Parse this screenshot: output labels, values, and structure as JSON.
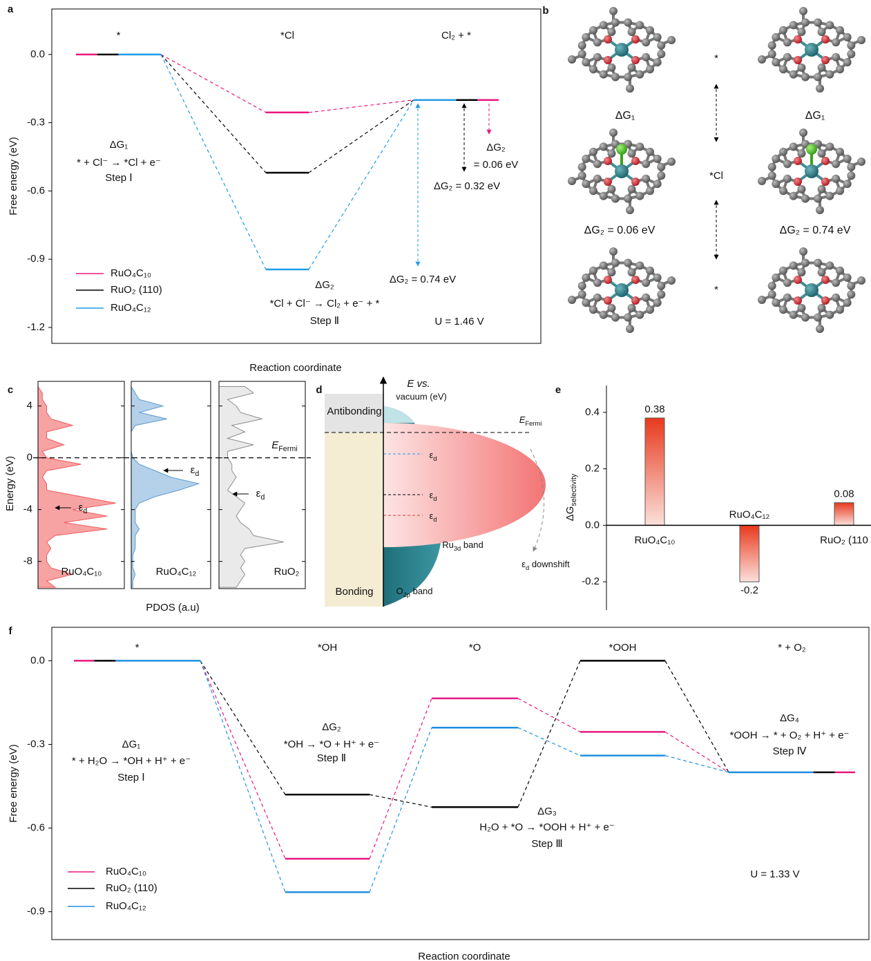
{
  "chart_data": [
    {
      "type": "energy_levels",
      "label": "a",
      "categories": [
        "*",
        "*Cl",
        "Cl₂ + *"
      ],
      "series": [
        {
          "name": "RuO₄C₁₀",
          "color": "#e8177f",
          "values": [
            0,
            -0.255,
            -0.2
          ]
        },
        {
          "name": "RuO₂ (110)",
          "color": "#000000",
          "values": [
            0,
            -0.52,
            -0.2
          ]
        },
        {
          "name": "RuO₄C₁₂",
          "color": "#1f9be8",
          "values": [
            0,
            -0.945,
            -0.2
          ]
        }
      ],
      "ylim": [
        -1.27,
        0.2
      ],
      "yticks": [
        {
          "value": 0,
          "label": "0.0"
        },
        -0.3,
        -0.6,
        -0.9,
        -1.2
      ],
      "xlabel": "Reaction coordinate",
      "ylabel": "Free energy (eV)",
      "legend_colored_text": false,
      "annotations": [
        "ΔG₁",
        "* + Cl⁻ → *Cl + e⁻",
        "Step Ⅰ",
        "ΔG₂",
        "*Cl + Cl⁻ → Cl₂ + e⁻ + *",
        "Step Ⅱ",
        "ΔG₂",
        "= 0.06 eV",
        "ΔG₂ = 0.32 eV",
        "ΔG₂ = 0.74 eV",
        "U = 1.46 V"
      ]
    },
    {
      "type": "pdos",
      "label": "c",
      "y": [
        5.5,
        5,
        4.5,
        4,
        3.5,
        3,
        2.5,
        2,
        1.5,
        1,
        0.5,
        0,
        -0.5,
        -1,
        -1.5,
        -2,
        -2.5,
        -3,
        -3.5,
        -4,
        -4.5,
        -5,
        -5.5,
        -6,
        -6.5,
        -7,
        -7.5,
        -8,
        -8.5,
        -9,
        -9.5,
        -10
      ],
      "xlim": [
        0,
        1
      ],
      "series": [
        {
          "name": "RuO₄C₁₀",
          "color": "#f0585a",
          "values": [
            0,
            0.05,
            0.05,
            0.1,
            0.1,
            0.15,
            0.4,
            0.1,
            0.1,
            0.3,
            0.05,
            0.1,
            0.5,
            0.1,
            0.05,
            0.1,
            0.1,
            0.5,
            0.9,
            0.4,
            0.8,
            0.3,
            0.8,
            0.2,
            0.1,
            0.15,
            0.1,
            0.1,
            0.15,
            0.4,
            0.1,
            0.2
          ]
        },
        {
          "name": "RuO₄C₁₂",
          "color": "#5b9bd0",
          "values": [
            0,
            0.05,
            0.1,
            0.4,
            0.1,
            0.45,
            0.05,
            0,
            0,
            0,
            0,
            0.02,
            0.1,
            0.3,
            0.5,
            0.85,
            0.6,
            0.3,
            0.1,
            0.05,
            0.05,
            0.05,
            0.1,
            0.05,
            0.05,
            0.05,
            0.02,
            0.02,
            0.02,
            0.05,
            0.02,
            0.02
          ]
        },
        {
          "name": "RuO₂",
          "color": "#8c8c8c",
          "values": [
            0.3,
            0.4,
            0.1,
            0.2,
            0.25,
            0.5,
            0.15,
            0.3,
            0.1,
            0.4,
            0.1,
            0.1,
            0.15,
            0.15,
            0.2,
            0.15,
            0.1,
            0.2,
            0.3,
            0.25,
            0.2,
            0.25,
            0.35,
            0.4,
            0.75,
            0.3,
            0.25,
            0.3,
            0.25,
            0.3,
            0.25,
            0.2
          ]
        }
      ],
      "ylim": [
        -10.1,
        5.9
      ],
      "yticks": [
        4,
        0,
        -4,
        -8
      ],
      "xlabel": "PDOS (a.u)",
      "ylabel": "Energy (eV)",
      "fermi": {
        "main": "E",
        "sub": "Fermi"
      },
      "epsilon": [
        {
          "main": "ε",
          "sub": "d"
        },
        {
          "main": "ε",
          "sub": "d"
        },
        {
          "main": "ε",
          "sub": "d"
        }
      ]
    },
    {
      "type": "bar",
      "label": "e",
      "categories": [
        "RuO₄C₁₀",
        "RuO₄C₁₂",
        "RuO₂ (110"
      ],
      "values": [
        0.38,
        -0.2,
        0.08
      ],
      "color": "#e8391d",
      "ylim": [
        -0.3,
        0.495
      ],
      "yticks": [
        0.4,
        0.2,
        {
          "value": 0,
          "label": "0.0"
        },
        -0.2
      ],
      "ylabel": {
        "main": "ΔG",
        "sub": "selectivity"
      }
    },
    {
      "type": "energy_levels",
      "label": "f",
      "categories": [
        "*",
        "*OH",
        "*O",
        "*OOH",
        "* + O₂"
      ],
      "series": [
        {
          "name": "RuO₄C₁₀",
          "color": "#e8177f",
          "values": [
            0,
            -0.71,
            -0.135,
            -0.255,
            -0.4
          ]
        },
        {
          "name": "RuO₂ (110)",
          "color": "#000000",
          "values": [
            0,
            -0.48,
            -0.525,
            0,
            -0.4
          ]
        },
        {
          "name": "RuO₄C₁₂",
          "color": "#1f8fe0",
          "values": [
            0,
            -0.83,
            -0.24,
            -0.34,
            -0.4
          ]
        }
      ],
      "ylim": [
        -1.0,
        0.12
      ],
      "yticks": [
        {
          "value": 0,
          "label": "0.0"
        },
        -0.3,
        -0.6,
        -0.9
      ],
      "xlabel": "Reaction coordinate",
      "ylabel": "Free energy (eV)",
      "legend_colored_text": true,
      "annotations": [
        "ΔG₁",
        "* + H₂O → *OH + H⁺ + e⁻",
        "Step Ⅰ",
        "ΔG₂",
        "*OH → *O + H⁺ + e⁻",
        "Step Ⅱ",
        "ΔG₃",
        "H₂O + *O → *OOH + H⁺ + e⁻",
        "Step Ⅲ",
        "ΔG₄",
        "*OOH → * + O₂ + H⁺ + e⁻",
        "Step Ⅳ",
        "U = 1.33 V"
      ]
    }
  ],
  "diagrams": {
    "b": {
      "label": "b",
      "states": [
        "*",
        "*Cl",
        "*"
      ],
      "dg": [
        "ΔG₁",
        "ΔG₁",
        "ΔG₂ = 0.06 eV",
        "ΔG₂ = 0.74 eV"
      ]
    },
    "d": {
      "label": "d",
      "axis_label": [
        "E vs.",
        "vacuum (eV)"
      ],
      "antibonding": "Antibonding",
      "bonding": "Bonding",
      "fermi": {
        "main": "E",
        "sub": "Fermi"
      },
      "epsilon": [
        {
          "main": "ε",
          "sub": "d"
        },
        {
          "main": "ε",
          "sub": "d"
        },
        {
          "main": "ε",
          "sub": "d"
        }
      ],
      "downshift": {
        "main": "ε",
        "sub": "d",
        "rest": " downshift"
      },
      "ru_band": {
        "main": "Ru",
        "sub": "3d",
        "rest": " band"
      },
      "o_band": {
        "main": "O",
        "sub": "2p",
        "rest": " band"
      }
    }
  }
}
